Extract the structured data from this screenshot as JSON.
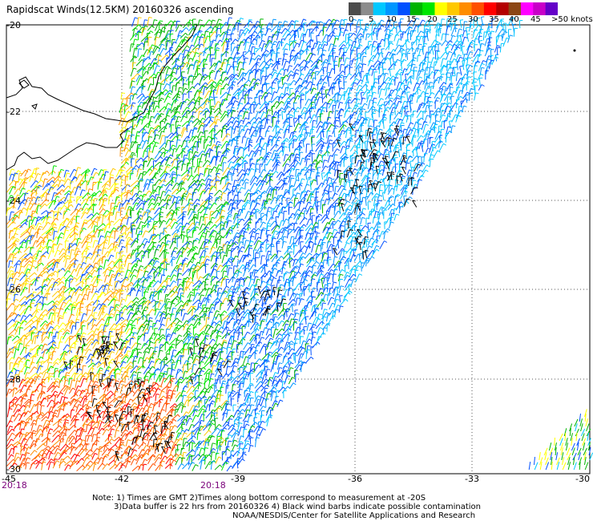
{
  "title": "Rapidscat Winds(12.5KM) 20160326 ascending",
  "colorbar": {
    "colors": [
      "#4c4c4c",
      "#8c8c8c",
      "#00c8ff",
      "#0096ff",
      "#0050ff",
      "#00b400",
      "#00e600",
      "#ffff00",
      "#ffc800",
      "#ff8c00",
      "#ff5000",
      "#ff0000",
      "#b40000",
      "#8c4614",
      "#ff00ff",
      "#c800c8",
      "#6400c8"
    ],
    "labels": [
      "0",
      "5",
      "10",
      "15",
      "20",
      "25",
      "30",
      "35",
      "40",
      "45",
      ">50 knots"
    ]
  },
  "map": {
    "lat_labels": [
      "-20",
      "-22",
      "-24",
      "-26",
      "-28",
      "-30"
    ],
    "lon_labels": [
      "-45",
      "-42",
      "-39",
      "-36",
      "-33",
      "-30"
    ],
    "time_labels": [
      "20:18",
      "20:18"
    ]
  },
  "notes": {
    "line1": "Note: 1) Times are GMT 2)Times along bottom correspond to measurement at -20S",
    "line2": "3)Data buffer is 22 hrs from 20160326 4) Black wind barbs indicate possible contamination",
    "line3": "NOAA/NESDIS/Center for Satellite Applications and Research"
  }
}
